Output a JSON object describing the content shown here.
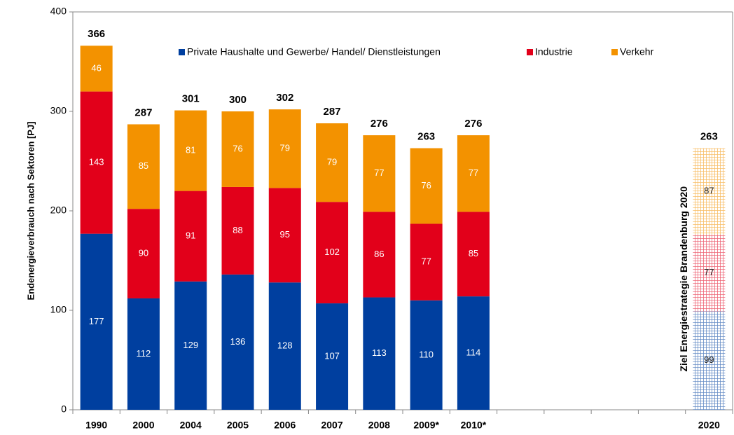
{
  "chart_data": {
    "type": "stacked_bar",
    "categories": [
      "1990",
      "2000",
      "2004",
      "2005",
      "2006",
      "2007",
      "2008",
      "2009*",
      "2010*",
      null,
      null,
      null,
      null,
      "2020"
    ],
    "series": [
      {
        "name": "Private Haushalte und Gewerbe/ Handel/ Dienstleistungen",
        "color": "#003f9f",
        "values": [
          177,
          112,
          129,
          136,
          128,
          107,
          113,
          110,
          114,
          null,
          null,
          null,
          null,
          99
        ]
      },
      {
        "name": "Industrie",
        "color": "#e2001a",
        "values": [
          143,
          90,
          91,
          88,
          95,
          102,
          86,
          77,
          85,
          null,
          null,
          null,
          null,
          77
        ]
      },
      {
        "name": "Verkehr",
        "color": "#f39200",
        "values": [
          46,
          85,
          81,
          76,
          79,
          79,
          77,
          76,
          77,
          null,
          null,
          null,
          null,
          87
        ]
      }
    ],
    "totals": [
      366,
      287,
      301,
      300,
      302,
      287,
      276,
      263,
      276,
      null,
      null,
      null,
      null,
      263
    ],
    "hatched_categories": [
      13
    ],
    "annotation": "Ziel Energiestrategie Brandenburg 2020",
    "ylabel": "Endenergieverbrauch nach Sektoren [PJ]",
    "ylim": [
      0,
      400
    ],
    "yticks": [
      0,
      100,
      200,
      300,
      400
    ],
    "legend": "top"
  }
}
